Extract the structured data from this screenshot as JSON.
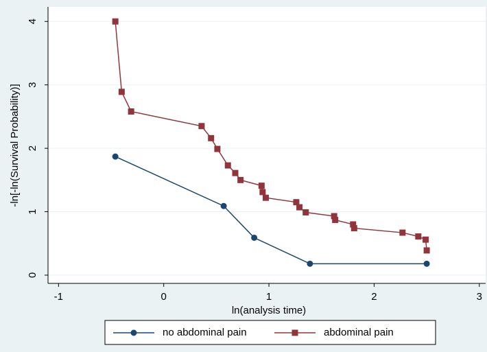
{
  "chart_data": {
    "type": "line",
    "x_label": "ln(analysis time)",
    "y_label": "-ln[-ln(Survival Probability)]",
    "xlim": [
      -1.1,
      3.06
    ],
    "ylim": [
      -0.13,
      4.23
    ],
    "xticks": [
      -1,
      0,
      1,
      2,
      3
    ],
    "yticks": [
      0,
      1,
      2,
      3,
      4
    ],
    "grid": true,
    "legend": "bottom",
    "series": [
      {
        "name": "no abdominal pain",
        "color": "#1a476f",
        "x": [
          -0.46,
          0.57,
          0.86,
          1.39,
          2.5
        ],
        "values": [
          1.87,
          1.09,
          0.59,
          0.18,
          0.18
        ]
      },
      {
        "name": "abdominal pain",
        "color": "#90353b",
        "x": [
          -0.46,
          -0.4,
          -0.31,
          0.36,
          0.45,
          0.51,
          0.61,
          0.68,
          0.73,
          0.93,
          0.94,
          0.97,
          1.26,
          1.29,
          1.35,
          1.62,
          1.63,
          1.8,
          1.81,
          2.27,
          2.42,
          2.49,
          2.5
        ],
        "values": [
          4.0,
          2.89,
          2.58,
          2.35,
          2.16,
          1.99,
          1.73,
          1.61,
          1.5,
          1.41,
          1.31,
          1.22,
          1.15,
          1.07,
          0.99,
          0.93,
          0.87,
          0.8,
          0.74,
          0.67,
          0.61,
          0.56,
          0.39
        ]
      }
    ]
  }
}
